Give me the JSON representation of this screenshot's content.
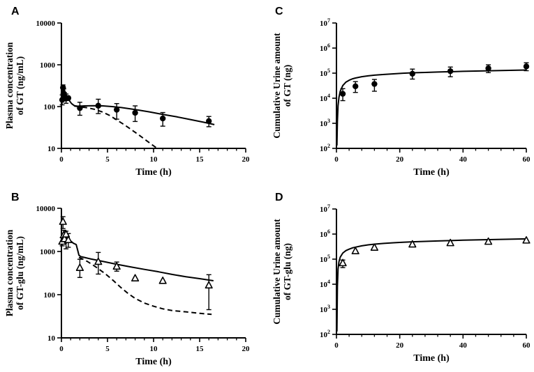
{
  "figure": {
    "background": "#ffffff",
    "ink_color": "#000000",
    "description": "Four-panel pharmacokinetic figure: observed points with model fit (solid) and alternate model (dashed) curves"
  },
  "chart_data": [
    {
      "label": "A",
      "type": "scatter",
      "marker": "circle",
      "y_title_lines": [
        "Plasma concentration",
        "of GT (ng/mL)"
      ],
      "x_title": "Time (h)",
      "x_axis": {
        "min": 0,
        "max": 20,
        "majors": [
          {
            "v": 0,
            "label": "0"
          },
          {
            "v": 5,
            "label": "5"
          },
          {
            "v": 10,
            "label": "10"
          },
          {
            "v": 15,
            "label": "15"
          },
          {
            "v": 20,
            "label": "20"
          }
        ],
        "minor_step": 1
      },
      "y_axis": {
        "scale": "log",
        "exp_min": 1,
        "exp_max": 4,
        "format": "plain",
        "labels": [
          "10",
          "100",
          "1000",
          "10000"
        ]
      },
      "points": [
        [
          0.083,
          145,
          110,
          190
        ],
        [
          0.17,
          285,
          205,
          330
        ],
        [
          0.25,
          205,
          160,
          265
        ],
        [
          0.33,
          175,
          140,
          215
        ],
        [
          0.5,
          155,
          120,
          200
        ],
        [
          0.75,
          160,
          160,
          160
        ],
        [
          2,
          92,
          62,
          127
        ],
        [
          4,
          105,
          68,
          150
        ],
        [
          6,
          84,
          50,
          118
        ],
        [
          8,
          71,
          44,
          104
        ],
        [
          11,
          52,
          34,
          72
        ],
        [
          16,
          45,
          33,
          58
        ]
      ],
      "fit_line": [
        [
          0,
          135
        ],
        [
          0.08,
          150
        ],
        [
          0.17,
          260
        ],
        [
          0.25,
          275
        ],
        [
          0.35,
          240
        ],
        [
          0.5,
          195
        ],
        [
          0.7,
          160
        ],
        [
          0.9,
          135
        ],
        [
          1.1,
          118
        ],
        [
          1.4,
          105
        ],
        [
          1.8,
          102
        ],
        [
          2.5,
          104
        ],
        [
          3.5,
          105
        ],
        [
          4.5,
          104
        ],
        [
          5.5,
          100
        ],
        [
          6.5,
          95
        ],
        [
          8,
          85
        ],
        [
          9.5,
          75
        ],
        [
          11,
          65
        ],
        [
          12.5,
          57
        ],
        [
          14,
          49
        ],
        [
          15.5,
          42
        ],
        [
          16.6,
          37
        ]
      ],
      "dashed_line": [
        [
          1.4,
          103
        ],
        [
          2,
          99
        ],
        [
          2.8,
          94
        ],
        [
          3.6,
          86
        ],
        [
          4.4,
          75
        ],
        [
          5.2,
          62
        ],
        [
          6,
          48
        ],
        [
          6.8,
          37
        ],
        [
          7.6,
          28
        ],
        [
          8.4,
          21
        ],
        [
          9.2,
          15.5
        ],
        [
          10,
          11.5
        ],
        [
          10.4,
          10
        ]
      ]
    },
    {
      "label": "B",
      "type": "scatter",
      "marker": "triangle",
      "y_title_lines": [
        "Plasma concentration",
        "of GT-glu (ng/mL)"
      ],
      "x_title": "Time (h)",
      "x_axis": {
        "min": 0,
        "max": 20,
        "majors": [
          {
            "v": 0,
            "label": "0"
          },
          {
            "v": 5,
            "label": "5"
          },
          {
            "v": 10,
            "label": "10"
          },
          {
            "v": 15,
            "label": "15"
          },
          {
            "v": 20,
            "label": "20"
          }
        ],
        "minor_step": 1
      },
      "y_axis": {
        "scale": "log",
        "exp_min": 1,
        "exp_max": 4,
        "format": "plain",
        "labels": [
          "10",
          "100",
          "1000",
          "10000"
        ]
      },
      "points": [
        [
          0.083,
          1700,
          1350,
          2100
        ],
        [
          0.17,
          4900,
          3400,
          6400
        ],
        [
          0.25,
          2400,
          1800,
          3100
        ],
        [
          0.33,
          1950,
          1550,
          2450
        ],
        [
          0.5,
          2500,
          1150,
          2950
        ],
        [
          0.75,
          1850,
          1250,
          2600
        ],
        [
          2,
          420,
          250,
          660
        ],
        [
          4,
          580,
          300,
          950
        ],
        [
          6,
          450,
          350,
          570
        ],
        [
          8,
          240,
          240,
          240
        ],
        [
          11,
          210,
          210,
          210
        ],
        [
          16,
          165,
          45,
          290
        ]
      ],
      "fit_line": [
        [
          0,
          1600
        ],
        [
          0.1,
          1950
        ],
        [
          0.2,
          2450
        ],
        [
          0.3,
          2750
        ],
        [
          0.45,
          2550
        ],
        [
          0.6,
          2250
        ],
        [
          0.8,
          1950
        ],
        [
          1,
          1750
        ],
        [
          1.3,
          1550
        ],
        [
          1.6,
          1450
        ],
        [
          1.75,
          1100
        ],
        [
          1.9,
          820
        ],
        [
          2.1,
          760
        ],
        [
          2.6,
          720
        ],
        [
          3.2,
          670
        ],
        [
          4,
          620
        ],
        [
          5,
          560
        ],
        [
          6,
          505
        ],
        [
          7.5,
          440
        ],
        [
          9,
          385
        ],
        [
          10.5,
          340
        ],
        [
          12,
          295
        ],
        [
          13.5,
          260
        ],
        [
          15,
          235
        ],
        [
          16.5,
          210
        ]
      ],
      "dashed_line": [
        [
          1.9,
          730
        ],
        [
          2.3,
          670
        ],
        [
          2.8,
          590
        ],
        [
          3.4,
          490
        ],
        [
          4,
          400
        ],
        [
          4.8,
          300
        ],
        [
          5.6,
          215
        ],
        [
          6.4,
          150
        ],
        [
          7.2,
          108
        ],
        [
          8,
          82
        ],
        [
          9,
          64
        ],
        [
          10,
          54
        ],
        [
          11,
          47
        ],
        [
          12,
          43
        ],
        [
          13.5,
          40
        ],
        [
          15,
          37
        ],
        [
          16.3,
          35
        ]
      ]
    },
    {
      "label": "C",
      "type": "scatter",
      "marker": "circle",
      "y_title_lines": [
        "Cumulative Urine amount",
        "of GT (ng)"
      ],
      "x_title": "Time (h)",
      "x_axis": {
        "min": 0,
        "max": 60,
        "majors": [
          {
            "v": 0,
            "label": "0"
          },
          {
            "v": 20,
            "label": "20"
          },
          {
            "v": 40,
            "label": "40"
          },
          {
            "v": 60,
            "label": "60"
          }
        ],
        "minor_step": 4
      },
      "y_axis": {
        "scale": "log",
        "exp_min": 2,
        "exp_max": 7,
        "format": "power"
      },
      "points": [
        [
          2,
          15000,
          8000,
          24000
        ],
        [
          6,
          30000,
          17000,
          46000
        ],
        [
          12,
          37000,
          19000,
          56000
        ],
        [
          24,
          95000,
          58000,
          145000
        ],
        [
          36,
          120000,
          72000,
          175000
        ],
        [
          48,
          155000,
          105000,
          215000
        ],
        [
          60,
          185000,
          125000,
          260000
        ]
      ],
      "fit_line": [
        [
          0.15,
          130
        ],
        [
          0.3,
          1200
        ],
        [
          0.5,
          5000
        ],
        [
          0.8,
          11000
        ],
        [
          1.2,
          19000
        ],
        [
          2,
          32000
        ],
        [
          3,
          44000
        ],
        [
          4,
          52000
        ],
        [
          5,
          59000
        ],
        [
          6,
          64000
        ],
        [
          8,
          72000
        ],
        [
          10,
          78000
        ],
        [
          12,
          83000
        ],
        [
          15,
          89000
        ],
        [
          18,
          94000
        ],
        [
          21,
          99000
        ],
        [
          24,
          103000
        ],
        [
          28,
          107000
        ],
        [
          32,
          111000
        ],
        [
          36,
          114000
        ],
        [
          40,
          118000
        ],
        [
          44,
          121000
        ],
        [
          48,
          124000
        ],
        [
          52,
          127000
        ],
        [
          56,
          130000
        ],
        [
          60,
          133000
        ]
      ],
      "dashed_line": null
    },
    {
      "label": "D",
      "type": "scatter",
      "marker": "triangle",
      "y_title_lines": [
        "Cumulative Urine amount",
        "of GT-glu (ng)"
      ],
      "x_title": "Time (h)",
      "x_axis": {
        "min": 0,
        "max": 60,
        "majors": [
          {
            "v": 0,
            "label": "0"
          },
          {
            "v": 20,
            "label": "20"
          },
          {
            "v": 40,
            "label": "40"
          },
          {
            "v": 60,
            "label": "60"
          }
        ],
        "minor_step": 4
      },
      "y_axis": {
        "scale": "log",
        "exp_min": 2,
        "exp_max": 7,
        "format": "power"
      },
      "points": [
        [
          2,
          70000,
          46000,
          92000
        ],
        [
          6,
          210000,
          210000,
          210000
        ],
        [
          12,
          290000,
          290000,
          290000
        ],
        [
          24,
          390000,
          390000,
          390000
        ],
        [
          36,
          440000,
          440000,
          440000
        ],
        [
          48,
          500000,
          500000,
          500000
        ],
        [
          60,
          560000,
          560000,
          560000
        ]
      ],
      "fit_line": [
        [
          0.15,
          130
        ],
        [
          0.3,
          8000
        ],
        [
          0.5,
          40000
        ],
        [
          0.8,
          80000
        ],
        [
          1.2,
          120000
        ],
        [
          2,
          175000
        ],
        [
          3,
          220000
        ],
        [
          4,
          250000
        ],
        [
          5,
          280000
        ],
        [
          6,
          300000
        ],
        [
          8,
          340000
        ],
        [
          10,
          370000
        ],
        [
          12,
          395000
        ],
        [
          15,
          425000
        ],
        [
          18,
          450000
        ],
        [
          21,
          470000
        ],
        [
          24,
          490000
        ],
        [
          28,
          510000
        ],
        [
          32,
          530000
        ],
        [
          36,
          550000
        ],
        [
          40,
          570000
        ],
        [
          44,
          585000
        ],
        [
          48,
          600000
        ],
        [
          52,
          615000
        ],
        [
          56,
          630000
        ],
        [
          60,
          645000
        ]
      ],
      "dashed_line": null
    }
  ]
}
